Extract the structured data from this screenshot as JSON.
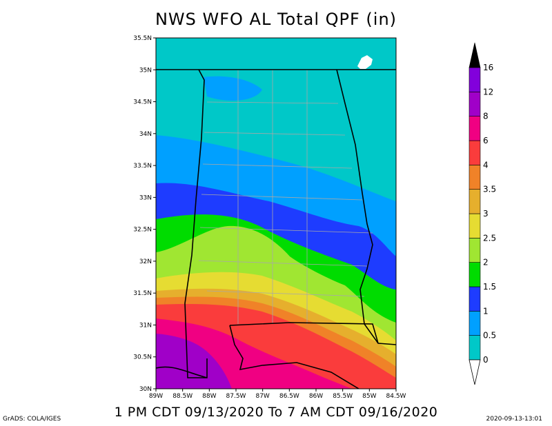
{
  "title": "NWS WFO AL Total QPF (in)",
  "subtitle": "1 PM CDT 09/13/2020 To 7 AM CDT 09/16/2020",
  "credit": "GrADS: COLA/IGES",
  "timestamp": "2020-09-13-13:01",
  "map": {
    "lat_labels": [
      "35.5N",
      "35N",
      "34.5N",
      "34N",
      "33.5N",
      "33N",
      "32.5N",
      "32N",
      "31.5N",
      "31N",
      "30.5N",
      "30N"
    ],
    "lon_labels": [
      "89W",
      "88.5W",
      "88W",
      "87.5W",
      "87W",
      "86.5W",
      "86W",
      "85.5W",
      "85W",
      "84.5W"
    ],
    "lat_range": [
      30,
      35.5
    ],
    "lon_range": [
      -89,
      -84.5
    ]
  },
  "colorbar": {
    "labels": [
      "0",
      "0.5",
      "1",
      "1.5",
      "2",
      "2.5",
      "3",
      "3.5",
      "4",
      "6",
      "8",
      "12",
      "16"
    ],
    "colors": [
      "#00c8c8",
      "#00a0ff",
      "#1e3cff",
      "#00dc00",
      "#a0e632",
      "#e6dc32",
      "#e6af2d",
      "#f08228",
      "#fa3c3c",
      "#f00082",
      "#a000c8",
      "#8200dc"
    ],
    "cap_color": "#000000"
  }
}
